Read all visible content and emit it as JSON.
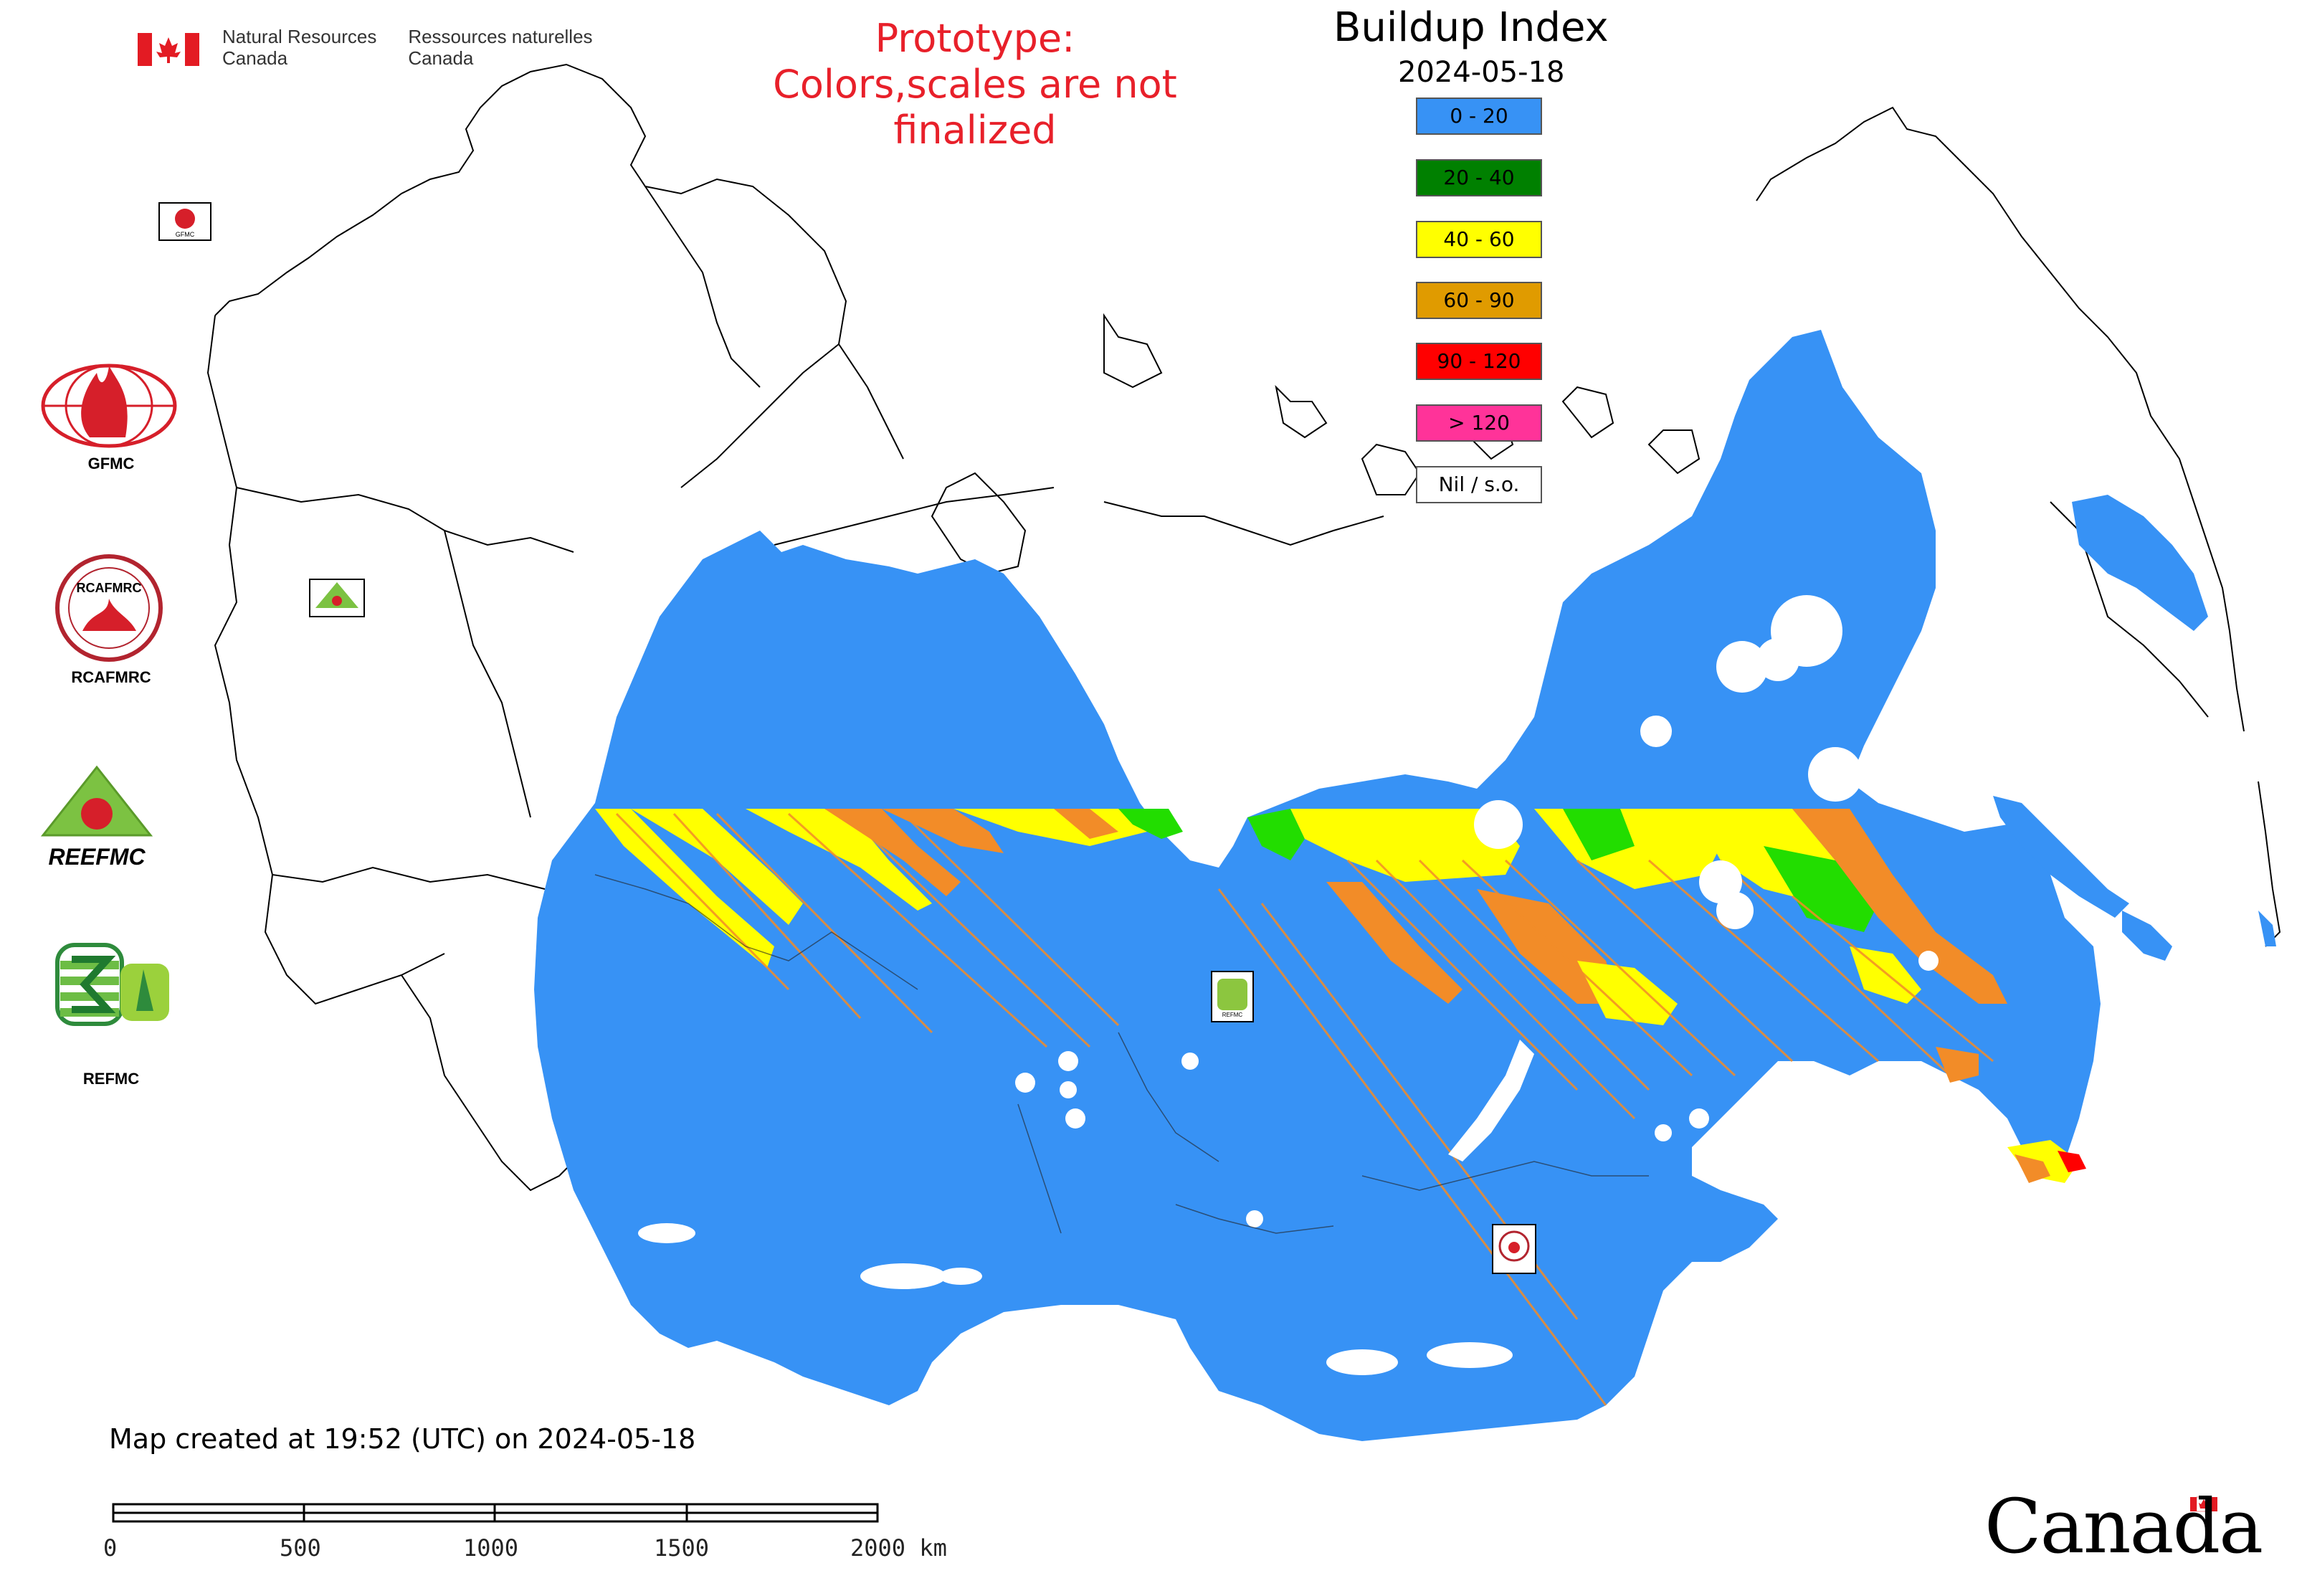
{
  "header": {
    "agency_en": [
      "Natural Resources",
      "Canada"
    ],
    "agency_fr": [
      "Ressources naturelles",
      "Canada"
    ]
  },
  "prototype_note": [
    "Prototype:",
    "Colors,scales are not finalized"
  ],
  "legend": {
    "title": "Buildup Index",
    "date": "2024-05-18",
    "classes": [
      {
        "label": "0 - 20",
        "color": "#3792f5"
      },
      {
        "label": "20 - 40",
        "color": "#008000"
      },
      {
        "label": "40 - 60",
        "color": "#ffff00"
      },
      {
        "label": "60 - 90",
        "color": "#e09b00"
      },
      {
        "label": "90 - 120",
        "color": "#ff0000"
      },
      {
        "label": "> 120",
        "color": "#ff3399"
      },
      {
        "label": "Nil / s.o.",
        "color": "#ffffff"
      }
    ]
  },
  "partner_logos": [
    {
      "name": "GFMC",
      "label": "GFMC"
    },
    {
      "name": "RCAFMRC",
      "label": "RCAFMRC"
    },
    {
      "name": "REEFMC",
      "label": "REEFMC"
    },
    {
      "name": "REFMC",
      "label": "REFMC"
    }
  ],
  "map_markers": [
    {
      "name": "GFMC"
    },
    {
      "name": "REEFMC"
    },
    {
      "name": "REFMC"
    },
    {
      "name": "RCAFMRC"
    }
  ],
  "footer": {
    "created": "Map created at 19:52 (UTC) on 2024-05-18"
  },
  "scale_bar": {
    "labels": [
      "0",
      "500",
      "1000",
      "1500",
      "2000 km"
    ]
  },
  "wordmark": "Canada",
  "colors": {
    "blue": "#3792f5",
    "green": "#22dd00",
    "yellow": "#ffff00",
    "orange": "#f28c28",
    "red": "#ff0000"
  }
}
